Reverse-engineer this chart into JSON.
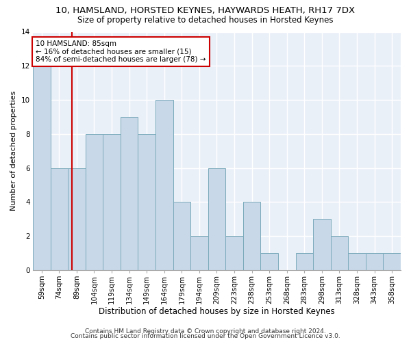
{
  "title": "10, HAMSLAND, HORSTED KEYNES, HAYWARDS HEATH, RH17 7DX",
  "subtitle": "Size of property relative to detached houses in Horsted Keynes",
  "xlabel": "Distribution of detached houses by size in Horsted Keynes",
  "ylabel": "Number of detached properties",
  "categories": [
    "59sqm",
    "74sqm",
    "89sqm",
    "104sqm",
    "119sqm",
    "134sqm",
    "149sqm",
    "164sqm",
    "179sqm",
    "194sqm",
    "209sqm",
    "223sqm",
    "238sqm",
    "253sqm",
    "268sqm",
    "283sqm",
    "298sqm",
    "313sqm",
    "328sqm",
    "343sqm",
    "358sqm"
  ],
  "values": [
    12,
    6,
    6,
    8,
    8,
    9,
    8,
    10,
    4,
    2,
    6,
    2,
    4,
    1,
    0,
    1,
    3,
    2,
    1,
    1,
    1
  ],
  "bar_color": "#c8d8e8",
  "bar_edgecolor": "#7aaabb",
  "bar_linewidth": 0.7,
  "bg_color": "#eaf0f8",
  "grid_color": "#ffffff",
  "annotation_text": "10 HAMSLAND: 85sqm\n← 16% of detached houses are smaller (15)\n84% of semi-detached houses are larger (78) →",
  "annotation_box_color": "#cc0000",
  "ylim": [
    0,
    14
  ],
  "yticks": [
    0,
    2,
    4,
    6,
    8,
    10,
    12,
    14
  ],
  "title_fontsize": 9.5,
  "subtitle_fontsize": 8.5,
  "xlabel_fontsize": 8.5,
  "ylabel_fontsize": 8,
  "tick_fontsize": 7.5,
  "annot_fontsize": 7.5,
  "footer1": "Contains HM Land Registry data © Crown copyright and database right 2024.",
  "footer2": "Contains public sector information licensed under the Open Government Licence v3.0."
}
